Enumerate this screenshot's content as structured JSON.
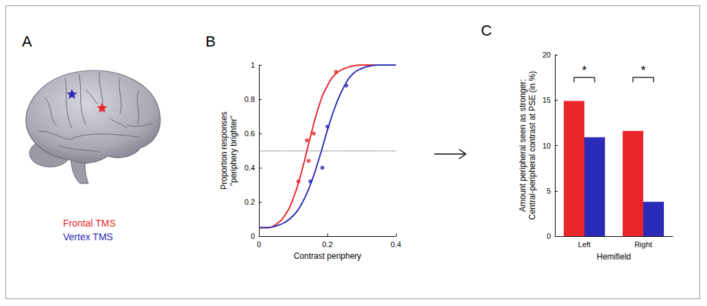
{
  "panel_a": {
    "panel": "A",
    "legend": [
      {
        "name": "Frontal TMS",
        "color": "#e8252b"
      },
      {
        "name": "Vertex TMS",
        "color": "#2b2bb8"
      }
    ]
  },
  "chart_data": [
    {
      "panel": "B",
      "type": "line",
      "xlabel": "Contrast periphery",
      "ylabel": "Proportion responses\n\"periphery brighter\"",
      "xlim": [
        0,
        0.4
      ],
      "xticks": [
        0,
        0.2,
        0.4
      ],
      "ylim": [
        0,
        1
      ],
      "yticks": [
        0,
        0.2,
        0.4,
        0.6,
        0.8,
        1
      ],
      "grid": false,
      "reference_y": 0.5,
      "series": [
        {
          "type": "line",
          "color": "#e8252b",
          "line_style": "solid",
          "x": [
            0,
            0.025,
            0.05,
            0.075,
            0.1,
            0.125,
            0.15,
            0.175,
            0.2,
            0.225,
            0.25,
            0.275,
            0.3,
            0.325,
            0.35,
            0.375,
            0.4
          ],
          "values": [
            0.05,
            0.05,
            0.07,
            0.12,
            0.22,
            0.38,
            0.58,
            0.76,
            0.88,
            0.95,
            0.98,
            0.995,
            1,
            1,
            1,
            1,
            1
          ]
        },
        {
          "type": "line",
          "color": "#2b2bb8",
          "line_style": "solid",
          "x": [
            0,
            0.025,
            0.05,
            0.075,
            0.1,
            0.125,
            0.15,
            0.175,
            0.2,
            0.225,
            0.25,
            0.275,
            0.3,
            0.325,
            0.35,
            0.375,
            0.4
          ],
          "values": [
            0.05,
            0.05,
            0.06,
            0.08,
            0.12,
            0.19,
            0.3,
            0.45,
            0.62,
            0.77,
            0.88,
            0.95,
            0.98,
            0.995,
            1,
            1,
            1
          ]
        },
        {
          "type": "scatter",
          "color": "#e8252b",
          "marker": "circle",
          "x": [
            0.115,
            0.14,
            0.145,
            0.16,
            0.225
          ],
          "values": [
            0.32,
            0.56,
            0.44,
            0.6,
            0.96
          ]
        },
        {
          "type": "scatter",
          "color": "#2b2bb8",
          "marker": "circle",
          "x": [
            0.15,
            0.185,
            0.2,
            0.255
          ],
          "values": [
            0.32,
            0.4,
            0.64,
            0.88
          ]
        }
      ]
    },
    {
      "panel": "C",
      "type": "bar",
      "xlabel": "Hemifield",
      "ylabel": "Amount peripheral seen as stronger:\nCentral-peripheral contrast at PSE (in %)",
      "categories": [
        "Left",
        "Right"
      ],
      "ylim": [
        0,
        20
      ],
      "yticks": [
        0,
        5,
        10,
        15,
        20
      ],
      "grid": false,
      "series": [
        {
          "color": "#e8252b",
          "values": [
            14.9,
            11.6
          ]
        },
        {
          "color": "#2b2bb8",
          "values": [
            10.9,
            3.8
          ]
        }
      ],
      "annotations": [
        {
          "text": "*",
          "category": "Left",
          "y": 17.5
        },
        {
          "text": "*",
          "category": "Right",
          "y": 17.5
        }
      ]
    }
  ]
}
